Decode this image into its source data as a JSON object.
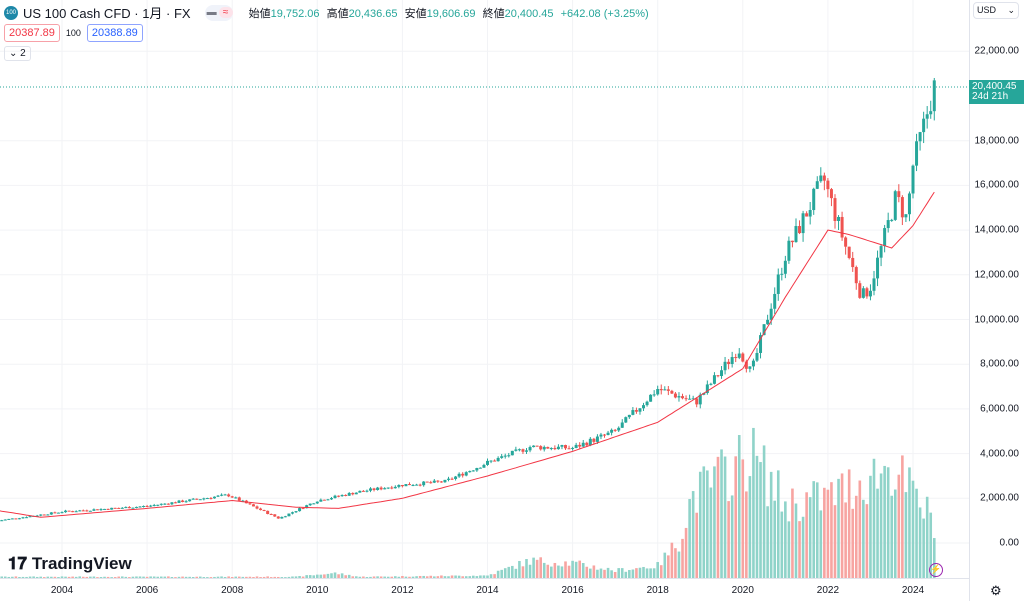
{
  "header": {
    "symbol_badge": "100",
    "title": "US 100 Cash CFD · 1月 · FX",
    "open_label": "始値",
    "open": "19,752.06",
    "high_label": "高値",
    "high": "20,436.65",
    "low_label": "安値",
    "low": "19,606.69",
    "close_label": "終値",
    "close": "20,400.45",
    "change": "+642.08 (+3.25%)",
    "sell_price": "20387.89",
    "spread": "100",
    "buy_price": "20388.89",
    "collapse_count": "2"
  },
  "axis": {
    "currency": "USD",
    "last_price": "20,400.45",
    "countdown": "24d 21h",
    "price_labels": [
      "22,000.00",
      "18,000.00",
      "16,000.00",
      "14,000.00",
      "12,000.00",
      "10,000.00",
      "8,000.00",
      "6,000.00",
      "4,000.00",
      "2,000.00",
      "0.00"
    ],
    "time_labels": [
      "2004",
      "2006",
      "2008",
      "2010",
      "2012",
      "2014",
      "2016",
      "2018",
      "2020",
      "2022",
      "2024"
    ]
  },
  "branding": {
    "logo": "TradingView"
  },
  "colors": {
    "up": "#26a69a",
    "down": "#ef5350",
    "ma": "#f23645",
    "up_vol": "#8fd3c9",
    "down_vol": "#f7a4a1"
  },
  "chart_data": {
    "type": "candlestick",
    "interval": "monthly",
    "price_keypoints": [
      [
        2002.5,
        1000
      ],
      [
        2004,
        1400
      ],
      [
        2006,
        1650
      ],
      [
        2007.9,
        2150
      ],
      [
        2009.1,
        1100
      ],
      [
        2010,
        1900
      ],
      [
        2011,
        2300
      ],
      [
        2012,
        2600
      ],
      [
        2013,
        2750
      ],
      [
        2014,
        3600
      ],
      [
        2015,
        4300
      ],
      [
        2016,
        4250
      ],
      [
        2017,
        5000
      ],
      [
        2018,
        6900
      ],
      [
        2018.9,
        6300
      ],
      [
        2019.9,
        8700
      ],
      [
        2020.2,
        7600
      ],
      [
        2021,
        12900
      ],
      [
        2021.9,
        16300
      ],
      [
        2022.8,
        11000
      ],
      [
        2023,
        11500
      ],
      [
        2023.6,
        15500
      ],
      [
        2023.85,
        14500
      ],
      [
        2024,
        16900
      ],
      [
        2024.5,
        20400
      ]
    ],
    "ma_keypoints": [
      [
        2002.5,
        1450
      ],
      [
        2003.5,
        1150
      ],
      [
        2006,
        1550
      ],
      [
        2008,
        1900
      ],
      [
        2009.5,
        1600
      ],
      [
        2010.5,
        1550
      ],
      [
        2012,
        2000
      ],
      [
        2014,
        3000
      ],
      [
        2016,
        4100
      ],
      [
        2018,
        5400
      ],
      [
        2019,
        6600
      ],
      [
        2020,
        7800
      ],
      [
        2021,
        11000
      ],
      [
        2022,
        14000
      ],
      [
        2022.5,
        13800
      ],
      [
        2023.5,
        13200
      ],
      [
        2024,
        14200
      ],
      [
        2024.5,
        15700
      ]
    ],
    "volume_keypoints": [
      [
        2002.5,
        1
      ],
      [
        2009.5,
        1
      ],
      [
        2010.4,
        4
      ],
      [
        2011,
        1
      ],
      [
        2014,
        2
      ],
      [
        2015,
        14
      ],
      [
        2016,
        12
      ],
      [
        2017,
        6
      ],
      [
        2018,
        10
      ],
      [
        2018.5,
        30
      ],
      [
        2018.8,
        65
      ],
      [
        2020.2,
        100
      ],
      [
        2021,
        60
      ],
      [
        2022,
        65
      ],
      [
        2023.5,
        90
      ],
      [
        2024.5,
        45
      ]
    ]
  }
}
